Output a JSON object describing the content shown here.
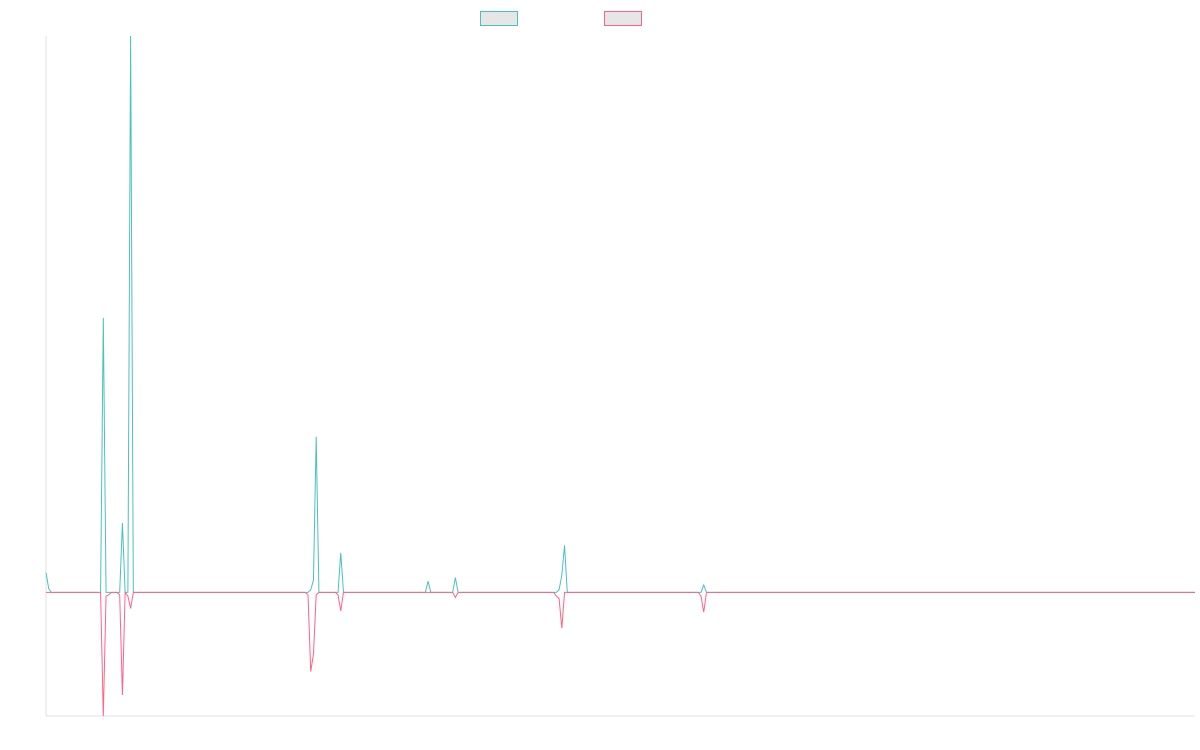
{
  "chart_data": {
    "type": "line",
    "title": "",
    "xlabel": "",
    "ylabel": "",
    "grid": false,
    "legend_position": "top-center",
    "colors": {
      "series_a": "#4bc0c0",
      "series_b": "#ff6384",
      "axis": "#e0e0e0",
      "legend_fill": "#e6e6e6"
    },
    "n_points": 422,
    "ylim": [
      -100,
      450
    ],
    "series": [
      {
        "name": "",
        "color": "#4bc0c0",
        "baseline": 0,
        "spikes": [
          [
            0,
            16
          ],
          [
            1,
            3
          ],
          [
            21,
            222
          ],
          [
            28,
            56
          ],
          [
            31,
            450
          ],
          [
            97,
            2
          ],
          [
            98,
            10
          ],
          [
            99,
            126
          ],
          [
            108,
            32
          ],
          [
            140,
            9
          ],
          [
            150,
            12
          ],
          [
            188,
            2
          ],
          [
            189,
            14
          ],
          [
            190,
            38
          ],
          [
            241,
            6
          ]
        ]
      },
      {
        "name": "",
        "color": "#ff6384",
        "baseline": 0,
        "spikes": [
          [
            21,
            -100
          ],
          [
            22,
            -3
          ],
          [
            23,
            -2
          ],
          [
            27,
            -2
          ],
          [
            28,
            -83
          ],
          [
            30,
            -3
          ],
          [
            31,
            -13
          ],
          [
            96,
            -2
          ],
          [
            97,
            -64
          ],
          [
            98,
            -50
          ],
          [
            99,
            -2
          ],
          [
            107,
            -2
          ],
          [
            108,
            -15
          ],
          [
            150,
            -4
          ],
          [
            187,
            -3
          ],
          [
            188,
            -5
          ],
          [
            189,
            -29
          ],
          [
            240,
            -3
          ],
          [
            241,
            -16
          ]
        ]
      }
    ]
  }
}
